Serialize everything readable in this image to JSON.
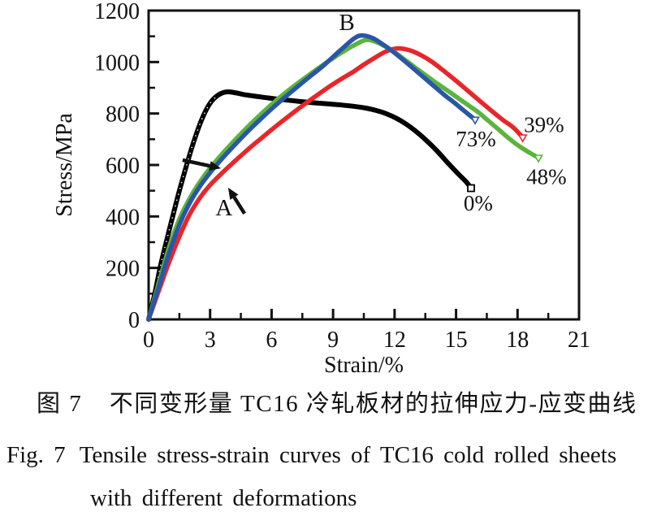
{
  "figure": {
    "caption_zh_label": "图 7",
    "caption_zh_text": "不同变形量 TC16 冷轧板材的拉伸应力-应变曲线",
    "caption_en_label": "Fig. 7",
    "caption_en_text": "Tensile stress-strain curves of TC16 cold rolled sheets",
    "caption_en_text2": "with different deformations"
  },
  "chart_data": {
    "type": "line",
    "title": "",
    "xlabel": "Strain/%",
    "ylabel": "Stress/MPa",
    "xlim": [
      0,
      21
    ],
    "ylim": [
      0,
      1200
    ],
    "xticks": [
      0,
      3,
      6,
      9,
      12,
      15,
      18,
      21
    ],
    "yticks": [
      0,
      200,
      400,
      600,
      800,
      1000,
      1200
    ],
    "minor_x_step": 1.5,
    "minor_y_step": 100,
    "grid": false,
    "legend": "labels at curve ends",
    "axis_color": "#111111",
    "series": [
      {
        "name": "0% deformation",
        "label": "0%",
        "color": "#000000",
        "end_marker": "square",
        "label_pos": [
          16.08,
          455
        ],
        "points": [
          [
            0,
            0
          ],
          [
            0.3,
            100
          ],
          [
            0.6,
            215
          ],
          [
            1,
            345
          ],
          [
            1.4,
            470
          ],
          [
            1.8,
            585
          ],
          [
            2.2,
            690
          ],
          [
            2.6,
            778
          ],
          [
            3,
            840
          ],
          [
            3.4,
            872
          ],
          [
            3.8,
            884
          ],
          [
            4.2,
            881
          ],
          [
            4.7,
            873
          ],
          [
            5.2,
            867
          ],
          [
            5.8,
            861
          ],
          [
            6.4,
            855
          ],
          [
            7,
            850
          ],
          [
            7.6,
            845
          ],
          [
            8.2,
            841
          ],
          [
            8.8,
            837
          ],
          [
            9.4,
            833
          ],
          [
            10,
            828
          ],
          [
            10.6,
            821
          ],
          [
            11.1,
            812
          ],
          [
            11.6,
            799
          ],
          [
            12.1,
            781
          ],
          [
            12.6,
            757
          ],
          [
            13.1,
            727
          ],
          [
            13.6,
            692
          ],
          [
            14.1,
            652
          ],
          [
            14.6,
            608
          ],
          [
            15.1,
            566
          ],
          [
            15.5,
            534
          ],
          [
            15.73,
            510
          ]
        ]
      },
      {
        "name": "39% deformation",
        "label": "39%",
        "color": "#e8262a",
        "end_marker": "triangle",
        "label_pos": [
          19.29,
          760
        ],
        "points": [
          [
            0,
            0
          ],
          [
            0.5,
            112
          ],
          [
            1,
            222
          ],
          [
            1.5,
            322
          ],
          [
            2,
            408
          ],
          [
            2.5,
            472
          ],
          [
            3,
            522
          ],
          [
            3.5,
            562
          ],
          [
            4,
            600
          ],
          [
            4.5,
            636
          ],
          [
            5,
            671
          ],
          [
            5.5,
            704
          ],
          [
            6,
            737
          ],
          [
            6.5,
            769
          ],
          [
            7,
            800
          ],
          [
            7.5,
            830
          ],
          [
            8,
            859
          ],
          [
            8.5,
            887
          ],
          [
            9,
            914
          ],
          [
            9.5,
            939
          ],
          [
            10,
            963
          ],
          [
            10.5,
            990
          ],
          [
            11,
            1015
          ],
          [
            11.5,
            1038
          ],
          [
            11.9,
            1050
          ],
          [
            12.3,
            1053
          ],
          [
            12.8,
            1044
          ],
          [
            13.3,
            1026
          ],
          [
            13.8,
            1002
          ],
          [
            14.3,
            972
          ],
          [
            14.8,
            940
          ],
          [
            15.3,
            907
          ],
          [
            15.8,
            873
          ],
          [
            16.3,
            839
          ],
          [
            16.8,
            806
          ],
          [
            17.3,
            774
          ],
          [
            17.8,
            745
          ],
          [
            18.25,
            707
          ]
        ]
      },
      {
        "name": "48% deformation",
        "label": "48%",
        "color": "#5cb43c",
        "end_marker": "triangle",
        "label_pos": [
          19.41,
          558
        ],
        "points": [
          [
            0,
            0
          ],
          [
            0.5,
            142
          ],
          [
            1,
            280
          ],
          [
            1.5,
            390
          ],
          [
            2,
            470
          ],
          [
            2.5,
            534
          ],
          [
            3,
            588
          ],
          [
            3.5,
            635
          ],
          [
            4,
            679
          ],
          [
            4.5,
            721
          ],
          [
            5,
            761
          ],
          [
            5.5,
            799
          ],
          [
            6,
            835
          ],
          [
            6.5,
            869
          ],
          [
            7,
            901
          ],
          [
            7.5,
            931
          ],
          [
            8,
            960
          ],
          [
            8.5,
            988
          ],
          [
            9,
            1015
          ],
          [
            9.5,
            1041
          ],
          [
            10,
            1064
          ],
          [
            10.6,
            1086
          ],
          [
            11.1,
            1078
          ],
          [
            11.6,
            1058
          ],
          [
            12.1,
            1032
          ],
          [
            12.6,
            1003
          ],
          [
            13.1,
            973
          ],
          [
            13.6,
            944
          ],
          [
            14.1,
            915
          ],
          [
            14.6,
            888
          ],
          [
            15.1,
            860
          ],
          [
            15.6,
            832
          ],
          [
            16.1,
            804
          ],
          [
            16.6,
            770
          ],
          [
            17.1,
            736
          ],
          [
            17.6,
            702
          ],
          [
            18.1,
            672
          ],
          [
            18.6,
            647
          ],
          [
            19.02,
            628
          ]
        ]
      },
      {
        "name": "73% deformation",
        "label": "73%",
        "color": "#2b56a7",
        "end_marker": "triangle",
        "label_pos": [
          15.97,
          705
        ],
        "points": [
          [
            0,
            0
          ],
          [
            0.5,
            128
          ],
          [
            1,
            258
          ],
          [
            1.5,
            368
          ],
          [
            2,
            452
          ],
          [
            2.5,
            517
          ],
          [
            3,
            570
          ],
          [
            3.5,
            617
          ],
          [
            4,
            661
          ],
          [
            4.5,
            703
          ],
          [
            5,
            743
          ],
          [
            5.5,
            781
          ],
          [
            6,
            818
          ],
          [
            6.5,
            853
          ],
          [
            7,
            887
          ],
          [
            7.5,
            920
          ],
          [
            8,
            952
          ],
          [
            8.5,
            984
          ],
          [
            9,
            1020
          ],
          [
            9.5,
            1056
          ],
          [
            10,
            1090
          ],
          [
            10.35,
            1103
          ],
          [
            10.9,
            1094
          ],
          [
            11.4,
            1070
          ],
          [
            11.9,
            1042
          ],
          [
            12.4,
            1010
          ],
          [
            12.9,
            976
          ],
          [
            13.4,
            942
          ],
          [
            13.9,
            908
          ],
          [
            14.4,
            874
          ],
          [
            14.9,
            843
          ],
          [
            15.4,
            810
          ],
          [
            15.93,
            776
          ]
        ]
      }
    ],
    "annotations": [
      {
        "label": "B",
        "pos": [
          9.67,
          1156
        ]
      },
      {
        "label": "A",
        "pos": [
          3.68,
          436
        ]
      }
    ],
    "arrows": [
      {
        "from": [
          1.66,
          619
        ],
        "to": [
          3.53,
          587
        ]
      },
      {
        "from": [
          4.68,
          411
        ],
        "to": [
          3.88,
          512
        ]
      }
    ]
  }
}
